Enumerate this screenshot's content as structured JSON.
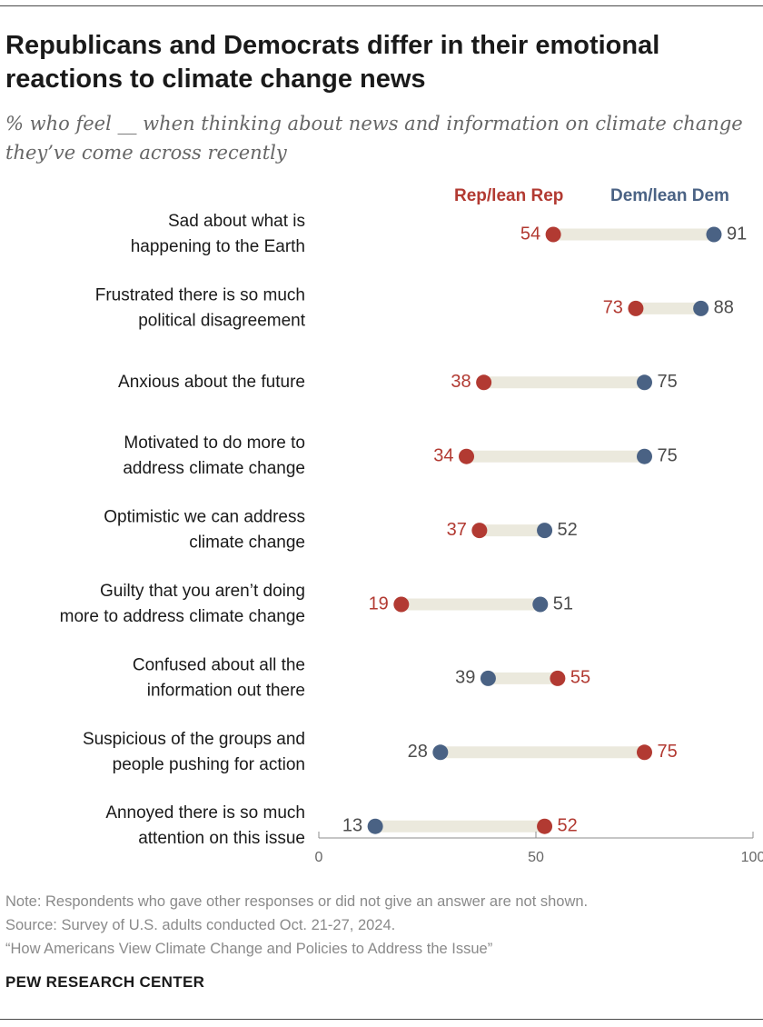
{
  "header": {
    "title": "Republicans and Democrats differ in their emotional reactions to climate change news",
    "subtitle": "% who feel __ when thinking about news and information on climate change they’ve come across recently"
  },
  "legend": {
    "rep_label": "Rep/lean Rep",
    "dem_label": "Dem/lean Dem"
  },
  "colors": {
    "rep": "#b23a32",
    "dem": "#4a6284",
    "connector": "#ebe9dd",
    "axis": "#8c8c8c",
    "label_text": "#1a1a1a",
    "dem_value_text": "#4d4d4d"
  },
  "chart_data": {
    "type": "dot",
    "xlim": [
      0,
      100
    ],
    "xticks": [
      0,
      50,
      100
    ],
    "series": [
      {
        "name": "Rep/lean Rep",
        "key": "rep"
      },
      {
        "name": "Dem/lean Dem",
        "key": "dem"
      }
    ],
    "categories": [
      {
        "label": [
          "Sad about what is",
          "happening to the Earth"
        ],
        "rep": 54,
        "dem": 91
      },
      {
        "label": [
          "Frustrated there is so much",
          "political disagreement"
        ],
        "rep": 73,
        "dem": 88
      },
      {
        "label": [
          "Anxious about the future"
        ],
        "rep": 38,
        "dem": 75
      },
      {
        "label": [
          "Motivated to do more to",
          "address climate change"
        ],
        "rep": 34,
        "dem": 75
      },
      {
        "label": [
          "Optimistic we can address",
          "climate change"
        ],
        "rep": 37,
        "dem": 52
      },
      {
        "label": [
          "Guilty that you aren’t doing",
          "more to address climate change"
        ],
        "rep": 19,
        "dem": 51
      },
      {
        "label": [
          "Confused about all the",
          "information out there"
        ],
        "rep": 55,
        "dem": 39
      },
      {
        "label": [
          "Suspicious of the groups and",
          "people pushing for action"
        ],
        "rep": 75,
        "dem": 28
      },
      {
        "label": [
          "Annoyed there is so much",
          "attention on this issue"
        ],
        "rep": 52,
        "dem": 13
      }
    ]
  },
  "footer": {
    "note": "Note: Respondents who gave other responses or did not give an answer are not shown.",
    "source": "Source: Survey of U.S. adults conducted Oct. 21-27, 2024.",
    "report": "“How Americans View Climate Change and Policies to Address the Issue”",
    "brand": "PEW RESEARCH CENTER"
  }
}
